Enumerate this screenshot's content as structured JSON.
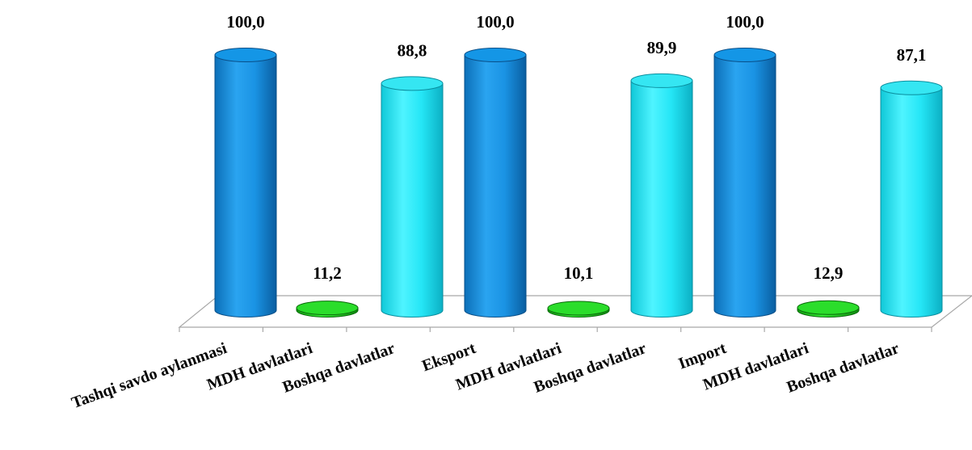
{
  "chart_data": {
    "type": "bar",
    "categories": [
      "Tashqi savdo aylanmasi",
      "MDH davlatlari",
      "Boshqa davlatlar",
      "Eksport",
      "MDH davlatlari",
      "Boshqa davlatlar",
      "Import",
      "MDH davlatlari",
      "Boshqa davlatlar"
    ],
    "values": [
      100.0,
      11.2,
      88.8,
      100.0,
      10.1,
      89.9,
      100.0,
      12.9,
      87.1
    ],
    "value_labels": [
      "100,0",
      "11,2",
      "88,8",
      "100,0",
      "10,1",
      "89,9",
      "100,0",
      "12,9",
      "87,1"
    ],
    "ylim": [
      0,
      100
    ],
    "grid": false,
    "legend": "none",
    "style": "3d-cylinder",
    "colors": {
      "total": "#1e8fdd",
      "mdh": "#22cc22",
      "other": "#22e0f0"
    },
    "bar_color_keys": [
      "total",
      "mdh",
      "other",
      "total",
      "mdh",
      "other",
      "total",
      "mdh",
      "other"
    ]
  }
}
